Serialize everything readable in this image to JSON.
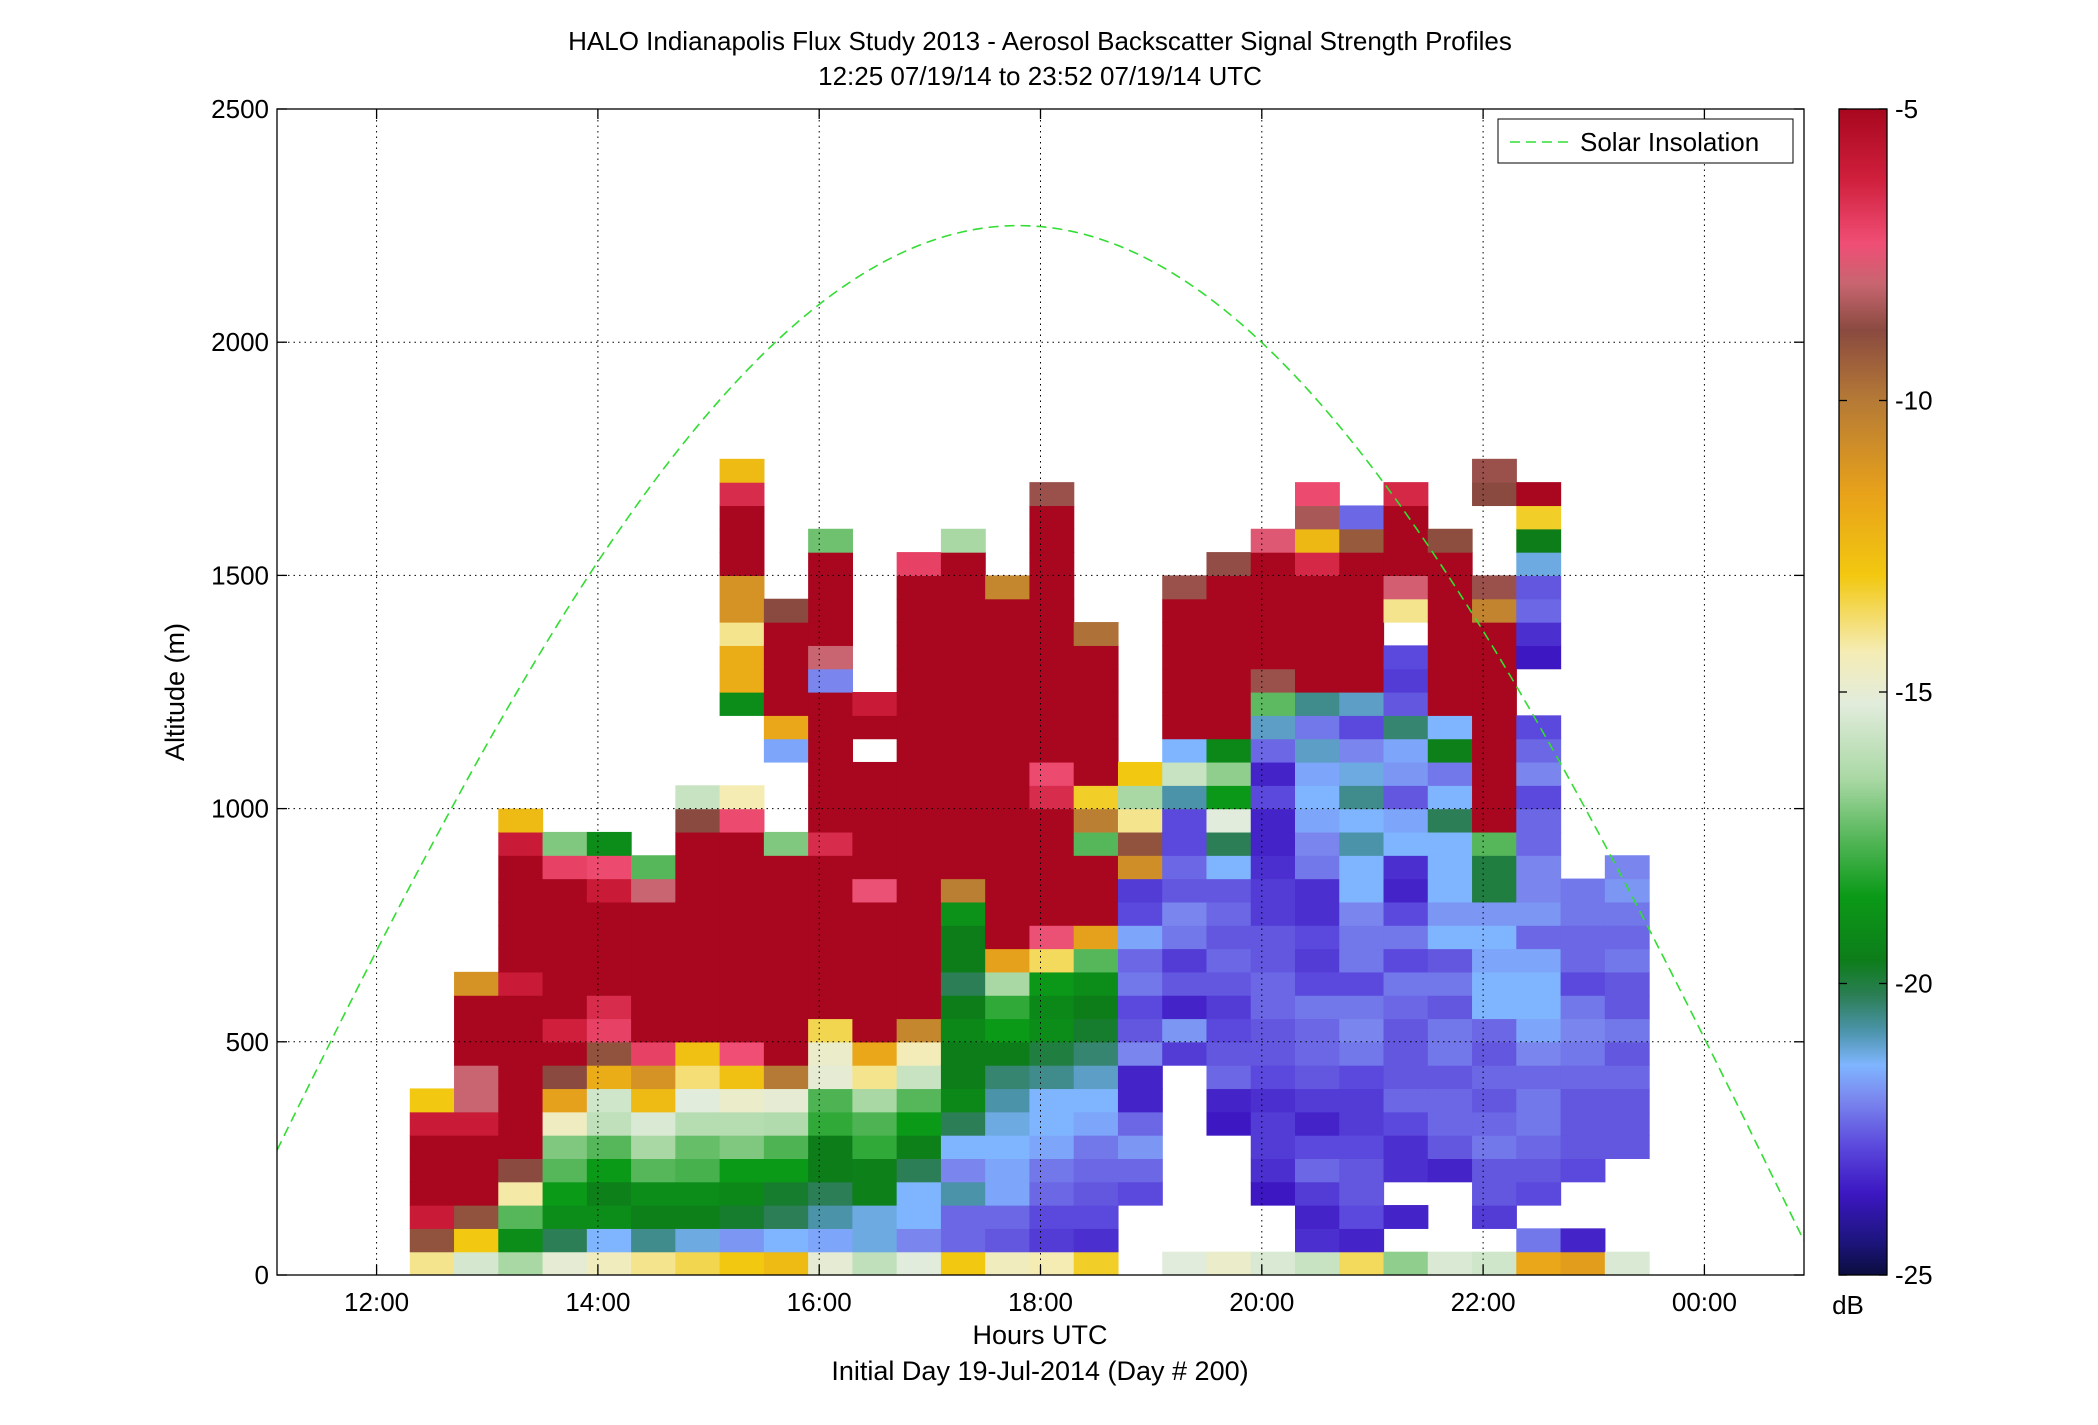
{
  "chart_data": {
    "type": "heatmap",
    "title": "HALO Indianapolis Flux Study 2013 - Aerosol Backscatter Signal Strength Profiles",
    "subtitle": "12:25 07/19/14 to 23:52 07/19/14  UTC",
    "xlabel": "Hours UTC",
    "xlabel_note": "Initial Day 19-Jul-2014 (Day # 200)",
    "ylabel": "Altitude (m)",
    "xlim": [
      11.1,
      24.9
    ],
    "ylim": [
      0,
      2500
    ],
    "x_ticks": [
      12,
      14,
      16,
      18,
      20,
      22,
      24
    ],
    "x_tick_labels": [
      "12:00",
      "14:00",
      "16:00",
      "18:00",
      "20:00",
      "22:00",
      "00:00"
    ],
    "y_ticks": [
      0,
      500,
      1000,
      1500,
      2000,
      2500
    ],
    "y_tick_labels": [
      "0",
      "500",
      "1000",
      "1500",
      "2000",
      "2500"
    ],
    "grid": true,
    "legend": {
      "position": "top-right",
      "entries": [
        {
          "label": "Solar Insolation",
          "color": "#33dd33",
          "style": "dashed"
        }
      ]
    },
    "colorbar": {
      "label": "dB",
      "range": [
        -25,
        -5
      ],
      "ticks": [
        -5,
        -10,
        -15,
        -20,
        -25
      ],
      "tick_labels": [
        "-5",
        "-10",
        "-15",
        "-20",
        "-25"
      ],
      "colormap": [
        [
          -5,
          "#a8071f"
        ],
        [
          -6.2,
          "#cf1f3c"
        ],
        [
          -7.3,
          "#f04e75"
        ],
        [
          -8,
          "#c86570"
        ],
        [
          -8.8,
          "#8a4a40"
        ],
        [
          -10,
          "#b57a36"
        ],
        [
          -11.6,
          "#e8a21a"
        ],
        [
          -13,
          "#f2c810"
        ],
        [
          -14.3,
          "#f5ecb4"
        ],
        [
          -15.2,
          "#e2ecdc"
        ],
        [
          -16.5,
          "#a9d8a4"
        ],
        [
          -17.5,
          "#56b75a"
        ],
        [
          -18.5,
          "#0b9a18"
        ],
        [
          -19.6,
          "#0d7d1a"
        ],
        [
          -20.2,
          "#2b7e55"
        ],
        [
          -20.8,
          "#4a93a8"
        ],
        [
          -21.4,
          "#7fb5ff"
        ],
        [
          -22,
          "#7a86ee"
        ],
        [
          -22.8,
          "#5b48dc"
        ],
        [
          -23.6,
          "#3c17c2"
        ],
        [
          -24.4,
          "#1e1580"
        ],
        [
          -25,
          "#0b0d3e"
        ]
      ]
    },
    "solar_insolation": {
      "peak_hour": 17.8,
      "peak_altitude_m": 2250,
      "zero_hours": [
        10.55,
        25.05
      ]
    },
    "bin_width_hours": 0.4,
    "bin_height_m": 50,
    "profiles": [
      {
        "t": 12.5,
        "base": 50,
        "dB": [
          -14,
          -9,
          -6,
          -5,
          -5,
          -5,
          -6,
          -13
        ]
      },
      {
        "t": 12.9,
        "base": 50,
        "dB": [
          -15.5,
          -13,
          -9,
          -5,
          -5,
          -5,
          -6,
          -8,
          -8,
          -5,
          -5,
          -5,
          -11
        ]
      },
      {
        "t": 13.3,
        "base": 50,
        "dB": [
          -16.5,
          -19,
          -17.5,
          -14.2,
          -8.8,
          -5,
          -5,
          -5,
          -5,
          -5,
          -5,
          -5,
          -6,
          -5,
          -5,
          -5,
          -5,
          -5,
          -6,
          -12.5
        ]
      },
      {
        "t": 13.7,
        "base": 50,
        "dB": [
          -15,
          -20.2,
          -19,
          -18.5,
          -17.5,
          -17,
          -14.6,
          -11.5,
          -8.8,
          -5,
          -6.2,
          -5,
          -5,
          -5,
          -5,
          -5,
          -5,
          -7,
          -17
        ]
      },
      {
        "t": 14.1,
        "base": 50,
        "dB": [
          -14.5,
          -21.4,
          -19,
          -19.5,
          -18.5,
          -17.5,
          -16,
          -15.6,
          -12,
          -9,
          -7,
          -6.5,
          -5,
          -5,
          -5,
          -5,
          -6,
          -7.2,
          -19
        ]
      },
      {
        "t": 14.5,
        "base": 50,
        "dB": [
          -14,
          -20.6,
          -19.5,
          -19,
          -17.5,
          -16.5,
          -15.4,
          -12.5,
          -11,
          -7,
          -5,
          -5,
          -5,
          -5,
          -5,
          -5,
          -8,
          -17.5
        ]
      },
      {
        "t": 14.9,
        "base": 50,
        "dB": [
          -13.5,
          -21.2,
          -19.5,
          -19,
          -17.7,
          -17.3,
          -16.2,
          -15.2,
          -13.8,
          -12.7,
          -5,
          -5,
          -5,
          -5,
          -5,
          -5,
          -5,
          -5,
          -5,
          -8.8,
          -15.8
        ]
      },
      {
        "t": 15.3,
        "base": 50,
        "dB": [
          -13,
          -21.8,
          -19.8,
          -19.2,
          -18.5,
          -17,
          -16.2,
          -14.8,
          -12.7,
          -7.3,
          -5,
          -5,
          -5,
          -5,
          -5,
          -5,
          -5,
          -5,
          -5,
          -7.2,
          -14.3,
          null,
          null,
          null,
          -19,
          -12,
          -12,
          -14,
          -11,
          -11,
          -5,
          -5,
          -5,
          -6.5,
          -12.5
        ]
      },
      {
        "t": 15.7,
        "base": 50,
        "dB": [
          -12.5,
          -21.4,
          -20.2,
          -19.8,
          -18.5,
          -17.6,
          -16.3,
          -15,
          -10,
          -5,
          -5,
          -5,
          -5,
          -5,
          -5,
          -5,
          -5,
          -5,
          -17,
          null,
          null,
          null,
          -21.6,
          -11.8,
          -5,
          -5,
          -5,
          -5,
          -8.8
        ]
      },
      {
        "t": 16.1,
        "base": 50,
        "dB": [
          -15,
          -21.6,
          -20.8,
          -20.2,
          -19.6,
          -19.6,
          -18,
          -17.6,
          -15,
          -14.8,
          -13.5,
          -5,
          -5,
          -5,
          -5,
          -5,
          -5,
          -5,
          -6.5,
          -5,
          -5,
          -5,
          -5,
          -5,
          -5,
          -22,
          -8,
          -5,
          -5,
          -5,
          -5,
          -17.2
        ]
      },
      {
        "t": 16.5,
        "base": 50,
        "dB": [
          -16,
          -21.2,
          -21.2,
          -19.5,
          -19.5,
          -18,
          -17.6,
          -16.5,
          -14,
          -11.8,
          -5,
          -5,
          -5,
          -5,
          -5,
          -5,
          -7.4,
          -5,
          -5,
          -5,
          -5,
          -5,
          null,
          -5,
          -6
        ]
      },
      {
        "t": 16.9,
        "base": 50,
        "dB": [
          -15.2,
          -22,
          -21.4,
          -21.4,
          -20.2,
          -19.5,
          -18.5,
          -17.5,
          -15.8,
          -14.4,
          -10.5,
          -5,
          -5,
          -5,
          -5,
          -5,
          -5,
          -5,
          -5,
          -5,
          -5,
          -5,
          -5,
          -5,
          -5,
          -5,
          -5,
          -5,
          -5,
          -5,
          -7
        ]
      },
      {
        "t": 17.3,
        "base": 50,
        "dB": [
          -13,
          -22.4,
          -22.4,
          -20.8,
          -22,
          -21.4,
          -20.2,
          -19.2,
          -19.6,
          -19.6,
          -19.2,
          -19.6,
          -20.2,
          -19.6,
          -19.6,
          -18.8,
          -10.2,
          -5,
          -5,
          -5,
          -5,
          -5,
          -5,
          -5,
          -5,
          -5,
          -5,
          -5,
          -5,
          -5,
          -5,
          -16.5
        ]
      },
      {
        "t": 17.7,
        "base": 50,
        "dB": [
          -14.5,
          -22.6,
          -22.4,
          -21.6,
          -21.6,
          -21.4,
          -21.2,
          -20.8,
          -20.4,
          -19.6,
          -18.5,
          -18,
          -16.5,
          -11.5,
          -5,
          -5,
          -5,
          -5,
          -5,
          -5,
          -5,
          -5,
          -5,
          -5,
          -5,
          -5,
          -5,
          -5,
          -5,
          -10.5
        ]
      },
      {
        "t": 18.1,
        "base": 50,
        "dB": [
          -14.3,
          -23,
          -22.8,
          -22.4,
          -22.2,
          -21.6,
          -21.4,
          -21.4,
          -20.6,
          -20,
          -19,
          -19.2,
          -18.6,
          -13.6,
          -7.4,
          -5,
          -5,
          -5,
          -5,
          -5,
          -6.5,
          -7.2,
          -5,
          -5,
          -5,
          -5,
          -5,
          -5,
          -5,
          -5,
          -5,
          -5,
          -5,
          -8.6
        ]
      },
      {
        "t": 18.5,
        "base": 50,
        "dB": [
          -13.2,
          -23.2,
          -22.8,
          -22.6,
          -22.4,
          -22.2,
          -21.6,
          -21.4,
          -21,
          -20.4,
          -19.8,
          -19.6,
          -19,
          -17.5,
          -11.5,
          -5,
          -5,
          -5,
          -17.5,
          -10.2,
          -13.2,
          -5,
          -5,
          -5,
          -5,
          -5,
          -5,
          -9.8
        ]
      },
      {
        "t": 18.9,
        "base": 50,
        "dB": [
          null,
          null,
          null,
          -22.8,
          -22.4,
          -21.8,
          -22.4,
          -23.4,
          -23.4,
          -22,
          -22.6,
          -22.8,
          -22.2,
          -22.4,
          -21.6,
          -22.8,
          -23,
          -10.8,
          -9,
          -14,
          -16.5,
          -13
        ]
      },
      {
        "t": 19.3,
        "base": 50,
        "dB": [
          -15.2,
          null,
          null,
          null,
          null,
          null,
          null,
          null,
          null,
          -23,
          -21.8,
          -23.4,
          -22.6,
          -23,
          -22.2,
          -22,
          -22.6,
          -22.4,
          -22.8,
          -22.8,
          -20.8,
          -15.8,
          -21.4,
          -5,
          -5,
          -5,
          -5,
          -5,
          -5,
          -8.6
        ]
      },
      {
        "t": 19.7,
        "base": 50,
        "dB": [
          -14.8,
          null,
          null,
          null,
          null,
          null,
          -23.6,
          -23.4,
          -22.4,
          -22.6,
          -22.8,
          -23,
          -22.6,
          -22.4,
          -22.6,
          -22.4,
          -22.6,
          -21.4,
          -20.2,
          -15.2,
          -18.6,
          -16.8,
          -19.2,
          -5,
          -5,
          -5,
          -5,
          -5,
          -5,
          -5,
          -8.7
        ]
      },
      {
        "t": 20.1,
        "base": 50,
        "dB": [
          -15.4,
          null,
          null,
          -23.6,
          -23.2,
          -23,
          -23,
          -23.2,
          -22.8,
          -22.6,
          -22.6,
          -22.4,
          -22.4,
          -22.6,
          -22.6,
          -23,
          -23,
          -23.2,
          -23.4,
          -23.4,
          -22.8,
          -23.4,
          -22.4,
          -21,
          -17.4,
          -8.6,
          -5,
          -5,
          -5,
          -5,
          -5,
          -7.6
        ]
      },
      {
        "t": 20.5,
        "base": 50,
        "dB": [
          -15.8,
          -23.2,
          -23.4,
          -23,
          -22.4,
          -22.8,
          -23.4,
          -23,
          -22.6,
          -22.4,
          -22.4,
          -22.2,
          -22.8,
          -23,
          -22.8,
          -23.2,
          -23.2,
          -22.2,
          -22,
          -21.6,
          -21.4,
          -21.6,
          -21,
          -22.2,
          -20.6,
          -5,
          -5,
          -5,
          -5,
          -5,
          -6.4,
          -12.4,
          -8.4,
          -7.2
        ]
      },
      {
        "t": 20.9,
        "base": 50,
        "dB": [
          -13.6,
          -23.4,
          -22.8,
          -22.6,
          -22.6,
          -22.8,
          -23,
          -23,
          -22.8,
          -22.2,
          -22,
          -22.2,
          -22.8,
          -22.2,
          -22.2,
          -22,
          -21.4,
          -21.4,
          -20.8,
          -21.4,
          -20.6,
          -21.2,
          -22,
          -22.8,
          -21,
          -5,
          -5,
          -5,
          -5,
          -5,
          -5,
          -9.2,
          -22.4
        ]
      },
      {
        "t": 21.3,
        "base": 50,
        "dB": [
          -16.8,
          null,
          -23.4,
          null,
          -23.2,
          -23.2,
          -22.8,
          -22.4,
          -22.6,
          -22.6,
          -22.6,
          -22.4,
          -22.2,
          -22.8,
          -22.2,
          -22.8,
          -23.4,
          -23.2,
          -21.4,
          -21.6,
          -22.6,
          -21.8,
          -21.6,
          -20.4,
          -22.6,
          -23,
          -22.8,
          null,
          -14,
          -7.8,
          -5,
          -5,
          -5,
          -6.4
        ]
      },
      {
        "t": 21.7,
        "base": 50,
        "dB": [
          -15.4,
          null,
          null,
          null,
          -23.4,
          -22.6,
          -22.4,
          -22.4,
          -22.6,
          -22.2,
          -22.2,
          -22.6,
          -22.2,
          -22.6,
          -21.4,
          -21.8,
          -21.4,
          -21.4,
          -21.4,
          -20.2,
          -21.4,
          -22.2,
          -19.5,
          -21.4,
          -5,
          -5,
          -5,
          -5,
          -5,
          -5,
          -5,
          -8.9
        ]
      },
      {
        "t": 22.1,
        "base": 50,
        "dB": [
          -15.6,
          null,
          -23,
          -22.6,
          -22.6,
          -22.2,
          -22.4,
          -22.6,
          -22.4,
          -22.6,
          -22.4,
          -21.4,
          -21.4,
          -21.6,
          -21.4,
          -21.8,
          -20,
          -20,
          -17.5,
          -5,
          -5,
          -5,
          -5,
          -5,
          -5,
          -5,
          -5,
          -5,
          -10.4,
          -8.6,
          null,
          null,
          null,
          -8.8,
          -8.6
        ]
      },
      {
        "t": 22.5,
        "base": 50,
        "dB": [
          -11.8,
          -22.2,
          null,
          -22.8,
          -22.6,
          -22.4,
          -22.2,
          -22.2,
          -22.4,
          -22,
          -21.6,
          -21.4,
          -21.4,
          -21.6,
          -22.4,
          -21.8,
          -22,
          -22,
          -22.4,
          -22.4,
          -22.8,
          -22,
          -22.4,
          -22.8,
          null,
          null,
          -23.6,
          -23.2,
          -22.4,
          -22.6,
          -21.2,
          -19.6,
          -13.2,
          -5
        ]
      },
      {
        "t": 22.9,
        "base": 50,
        "dB": [
          -11.4,
          -23.4,
          null,
          null,
          -22.8,
          -22.6,
          -22.6,
          -22.6,
          -22.4,
          -22.2,
          -22,
          -22.2,
          -22.8,
          -22.4,
          -22.4,
          -22.2,
          -22.2
        ]
      },
      {
        "t": 23.3,
        "base": 50,
        "dB": [
          -15.4,
          null,
          null,
          null,
          null,
          -22.6,
          -22.6,
          -22.6,
          -22.4,
          -22.6,
          -22.2,
          -22.6,
          -22.6,
          -22.2,
          -22.4,
          -22.2,
          -21.8,
          -22
        ]
      }
    ]
  }
}
